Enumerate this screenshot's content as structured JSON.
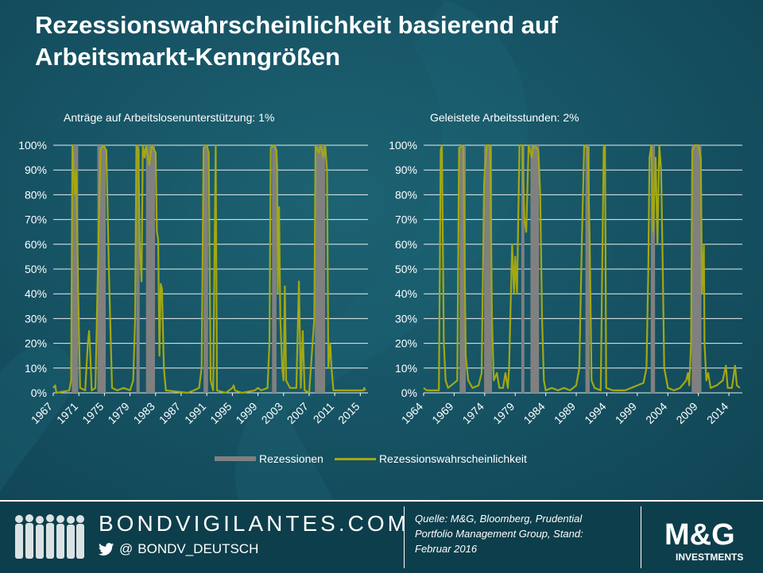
{
  "title_line1": "Rezessionswahrscheinlichkeit basierend auf",
  "title_line2": "Arbeitsmarkt-Kenngrößen",
  "legend": {
    "recessions": "Rezessionen",
    "probability": "Rezessionswahrscheinlichkeit"
  },
  "colors": {
    "recession": "#808080",
    "probability": "#a3a813",
    "background": "#175566",
    "footer": "#0d3e4b"
  },
  "footer": {
    "brand": "BONDVIGILANTES.COM",
    "handle": "BONDV_DEUTSCH",
    "source_line1": "Quelle: M&G, Bloomberg, Prudential",
    "source_line2": "Portfolio Management Group, Stand:",
    "source_line3": "Februar 2016",
    "logo_main": "M&G",
    "logo_sub": "INVESTMENTS"
  },
  "chart_data": [
    {
      "type": "line",
      "title": "Anträge auf Arbeitslosenunterstützung:  1%",
      "xlim": [
        1967,
        2016.2
      ],
      "ylim": [
        0,
        100
      ],
      "y_ticks": [
        "0%",
        "10%",
        "20%",
        "30%",
        "40%",
        "50%",
        "60%",
        "70%",
        "80%",
        "90%",
        "100%"
      ],
      "x_ticks": [
        "1967",
        "1971",
        "1975",
        "1979",
        "1983",
        "1987",
        "1991",
        "1995",
        "1999",
        "2003",
        "2007",
        "2011",
        "2015"
      ],
      "recessions": [
        [
          1969.9,
          1970.9
        ],
        [
          1973.9,
          1975.2
        ],
        [
          1980.0,
          1980.5
        ],
        [
          1981.5,
          1982.9
        ],
        [
          1990.5,
          1991.2
        ],
        [
          2001.2,
          2001.9
        ],
        [
          2007.9,
          2009.5
        ]
      ],
      "series": [
        {
          "name": "Rezessionswahrscheinlichkeit",
          "points": [
            [
              1967.0,
              2
            ],
            [
              1967.3,
              3
            ],
            [
              1967.5,
              0
            ],
            [
              1969.5,
              1
            ],
            [
              1969.8,
              5
            ],
            [
              1970.0,
              100
            ],
            [
              1970.4,
              80
            ],
            [
              1970.6,
              90
            ],
            [
              1970.9,
              40
            ],
            [
              1971.2,
              2
            ],
            [
              1972.0,
              1
            ],
            [
              1972.4,
              20
            ],
            [
              1972.6,
              25
            ],
            [
              1972.8,
              15
            ],
            [
              1973.0,
              1
            ],
            [
              1973.6,
              2
            ],
            [
              1973.9,
              40
            ],
            [
              1974.1,
              65
            ],
            [
              1974.4,
              98
            ],
            [
              1974.8,
              100
            ],
            [
              1975.3,
              98
            ],
            [
              1975.7,
              50
            ],
            [
              1975.9,
              30
            ],
            [
              1976.2,
              2
            ],
            [
              1977.0,
              1
            ],
            [
              1978.0,
              2
            ],
            [
              1979.0,
              1
            ],
            [
              1979.5,
              5
            ],
            [
              1979.8,
              30
            ],
            [
              1980.0,
              100
            ],
            [
              1980.3,
              98
            ],
            [
              1980.5,
              60
            ],
            [
              1980.8,
              45
            ],
            [
              1981.0,
              100
            ],
            [
              1981.3,
              95
            ],
            [
              1981.5,
              100
            ],
            [
              1982.0,
              92
            ],
            [
              1982.4,
              100
            ],
            [
              1982.8,
              98
            ],
            [
              1983.0,
              97
            ],
            [
              1983.2,
              65
            ],
            [
              1983.4,
              62
            ],
            [
              1983.6,
              15
            ],
            [
              1983.8,
              44
            ],
            [
              1984.0,
              42
            ],
            [
              1984.3,
              10
            ],
            [
              1984.6,
              1
            ],
            [
              1988.0,
              0
            ],
            [
              1989.0,
              1
            ],
            [
              1989.8,
              2
            ],
            [
              1990.2,
              10
            ],
            [
              1990.5,
              99
            ],
            [
              1991.0,
              100
            ],
            [
              1991.3,
              97
            ],
            [
              1991.6,
              5
            ],
            [
              1992.0,
              1
            ],
            [
              1992.4,
              100
            ],
            [
              1992.6,
              1
            ],
            [
              1994.0,
              0
            ],
            [
              1995.0,
              2
            ],
            [
              1995.2,
              3
            ],
            [
              1995.4,
              1
            ],
            [
              1996.5,
              0
            ],
            [
              1998.5,
              1
            ],
            [
              1999.0,
              2
            ],
            [
              1999.5,
              1
            ],
            [
              2000.5,
              2
            ],
            [
              2000.8,
              20
            ],
            [
              2001.0,
              99
            ],
            [
              2001.5,
              100
            ],
            [
              2001.9,
              98
            ],
            [
              2002.0,
              90
            ],
            [
              2002.1,
              40
            ],
            [
              2002.3,
              75
            ],
            [
              2002.5,
              30
            ],
            [
              2002.8,
              10
            ],
            [
              2003.0,
              5
            ],
            [
              2003.2,
              43
            ],
            [
              2003.4,
              5
            ],
            [
              2004.0,
              2
            ],
            [
              2005.0,
              2
            ],
            [
              2005.4,
              45
            ],
            [
              2005.7,
              2
            ],
            [
              2006.0,
              25
            ],
            [
              2006.3,
              1
            ],
            [
              2007.0,
              0
            ],
            [
              2007.8,
              30
            ],
            [
              2008.0,
              100
            ],
            [
              2008.5,
              97
            ],
            [
              2008.8,
              100
            ],
            [
              2009.2,
              95
            ],
            [
              2009.5,
              100
            ],
            [
              2009.8,
              90
            ],
            [
              2010.0,
              10
            ],
            [
              2010.3,
              20
            ],
            [
              2010.5,
              10
            ],
            [
              2010.8,
              1
            ],
            [
              2012.0,
              1
            ],
            [
              2015.5,
              1
            ],
            [
              2015.6,
              2
            ],
            [
              2015.8,
              1
            ]
          ]
        }
      ]
    },
    {
      "type": "line",
      "title": "Geleistete Arbeitsstunden:  2%",
      "xlim": [
        1964,
        2016.2
      ],
      "ylim": [
        0,
        100
      ],
      "y_ticks": [
        "0%",
        "10%",
        "20%",
        "30%",
        "40%",
        "50%",
        "60%",
        "70%",
        "80%",
        "90%",
        "100%"
      ],
      "x_ticks": [
        "1964",
        "1969",
        "1974",
        "1979",
        "1984",
        "1989",
        "1994",
        "1999",
        "2004",
        "2009",
        "2014"
      ],
      "recessions": [
        [
          1969.9,
          1970.9
        ],
        [
          1973.9,
          1975.2
        ],
        [
          1980.0,
          1980.5
        ],
        [
          1981.5,
          1982.9
        ],
        [
          1990.5,
          1991.2
        ],
        [
          2001.2,
          2001.9
        ],
        [
          2007.9,
          2009.5
        ]
      ],
      "series": [
        {
          "name": "Rezessionswahrscheinlichkeit",
          "points": [
            [
              1964.0,
              2
            ],
            [
              1964.5,
              1
            ],
            [
              1966.5,
              1
            ],
            [
              1966.8,
              98
            ],
            [
              1967.0,
              100
            ],
            [
              1967.3,
              20
            ],
            [
              1967.6,
              5
            ],
            [
              1968.0,
              2
            ],
            [
              1969.5,
              5
            ],
            [
              1969.8,
              99
            ],
            [
              1970.5,
              100
            ],
            [
              1970.9,
              15
            ],
            [
              1971.3,
              5
            ],
            [
              1972.0,
              2
            ],
            [
              1973.0,
              3
            ],
            [
              1973.5,
              8
            ],
            [
              1973.9,
              85
            ],
            [
              1974.3,
              100
            ],
            [
              1974.9,
              100
            ],
            [
              1975.2,
              30
            ],
            [
              1975.5,
              5
            ],
            [
              1976.0,
              8
            ],
            [
              1976.4,
              2
            ],
            [
              1977.0,
              2
            ],
            [
              1977.4,
              8
            ],
            [
              1977.8,
              2
            ],
            [
              1978.0,
              10
            ],
            [
              1978.5,
              60
            ],
            [
              1978.8,
              40
            ],
            [
              1979.0,
              55
            ],
            [
              1979.3,
              40
            ],
            [
              1979.7,
              100
            ],
            [
              1980.2,
              100
            ],
            [
              1980.5,
              70
            ],
            [
              1980.8,
              65
            ],
            [
              1981.2,
              100
            ],
            [
              1981.7,
              95
            ],
            [
              1982.0,
              100
            ],
            [
              1982.8,
              98
            ],
            [
              1983.1,
              80
            ],
            [
              1983.4,
              30
            ],
            [
              1983.7,
              5
            ],
            [
              1984.0,
              1
            ],
            [
              1985.0,
              2
            ],
            [
              1986.0,
              1
            ],
            [
              1987.0,
              2
            ],
            [
              1988.0,
              1
            ],
            [
              1989.0,
              3
            ],
            [
              1989.5,
              10
            ],
            [
              1989.9,
              60
            ],
            [
              1990.3,
              100
            ],
            [
              1990.9,
              99
            ],
            [
              1991.2,
              60
            ],
            [
              1991.5,
              5
            ],
            [
              1992.0,
              2
            ],
            [
              1993.0,
              1
            ],
            [
              1993.5,
              99
            ],
            [
              1993.7,
              100
            ],
            [
              1993.9,
              2
            ],
            [
              1995.0,
              1
            ],
            [
              1997.0,
              1
            ],
            [
              1998.0,
              2
            ],
            [
              1999.0,
              3
            ],
            [
              2000.0,
              4
            ],
            [
              2000.5,
              10
            ],
            [
              2000.8,
              50
            ],
            [
              2001.0,
              95
            ],
            [
              2001.3,
              100
            ],
            [
              2001.6,
              65
            ],
            [
              2002.0,
              95
            ],
            [
              2002.3,
              60
            ],
            [
              2002.6,
              100
            ],
            [
              2002.9,
              90
            ],
            [
              2003.1,
              60
            ],
            [
              2003.4,
              10
            ],
            [
              2003.8,
              5
            ],
            [
              2004.0,
              2
            ],
            [
              2005.0,
              1
            ],
            [
              2006.0,
              2
            ],
            [
              2007.0,
              5
            ],
            [
              2007.3,
              8
            ],
            [
              2007.5,
              3
            ],
            [
              2007.8,
              20
            ],
            [
              2008.0,
              98
            ],
            [
              2008.4,
              100
            ],
            [
              2009.0,
              100
            ],
            [
              2009.4,
              95
            ],
            [
              2009.6,
              40
            ],
            [
              2009.9,
              60
            ],
            [
              2010.0,
              20
            ],
            [
              2010.3,
              5
            ],
            [
              2010.6,
              8
            ],
            [
              2011.0,
              2
            ],
            [
              2012.0,
              3
            ],
            [
              2013.0,
              5
            ],
            [
              2013.5,
              11
            ],
            [
              2013.8,
              2
            ],
            [
              2014.5,
              2
            ],
            [
              2015.0,
              11
            ],
            [
              2015.3,
              3
            ],
            [
              2015.8,
              2
            ]
          ]
        }
      ]
    }
  ]
}
